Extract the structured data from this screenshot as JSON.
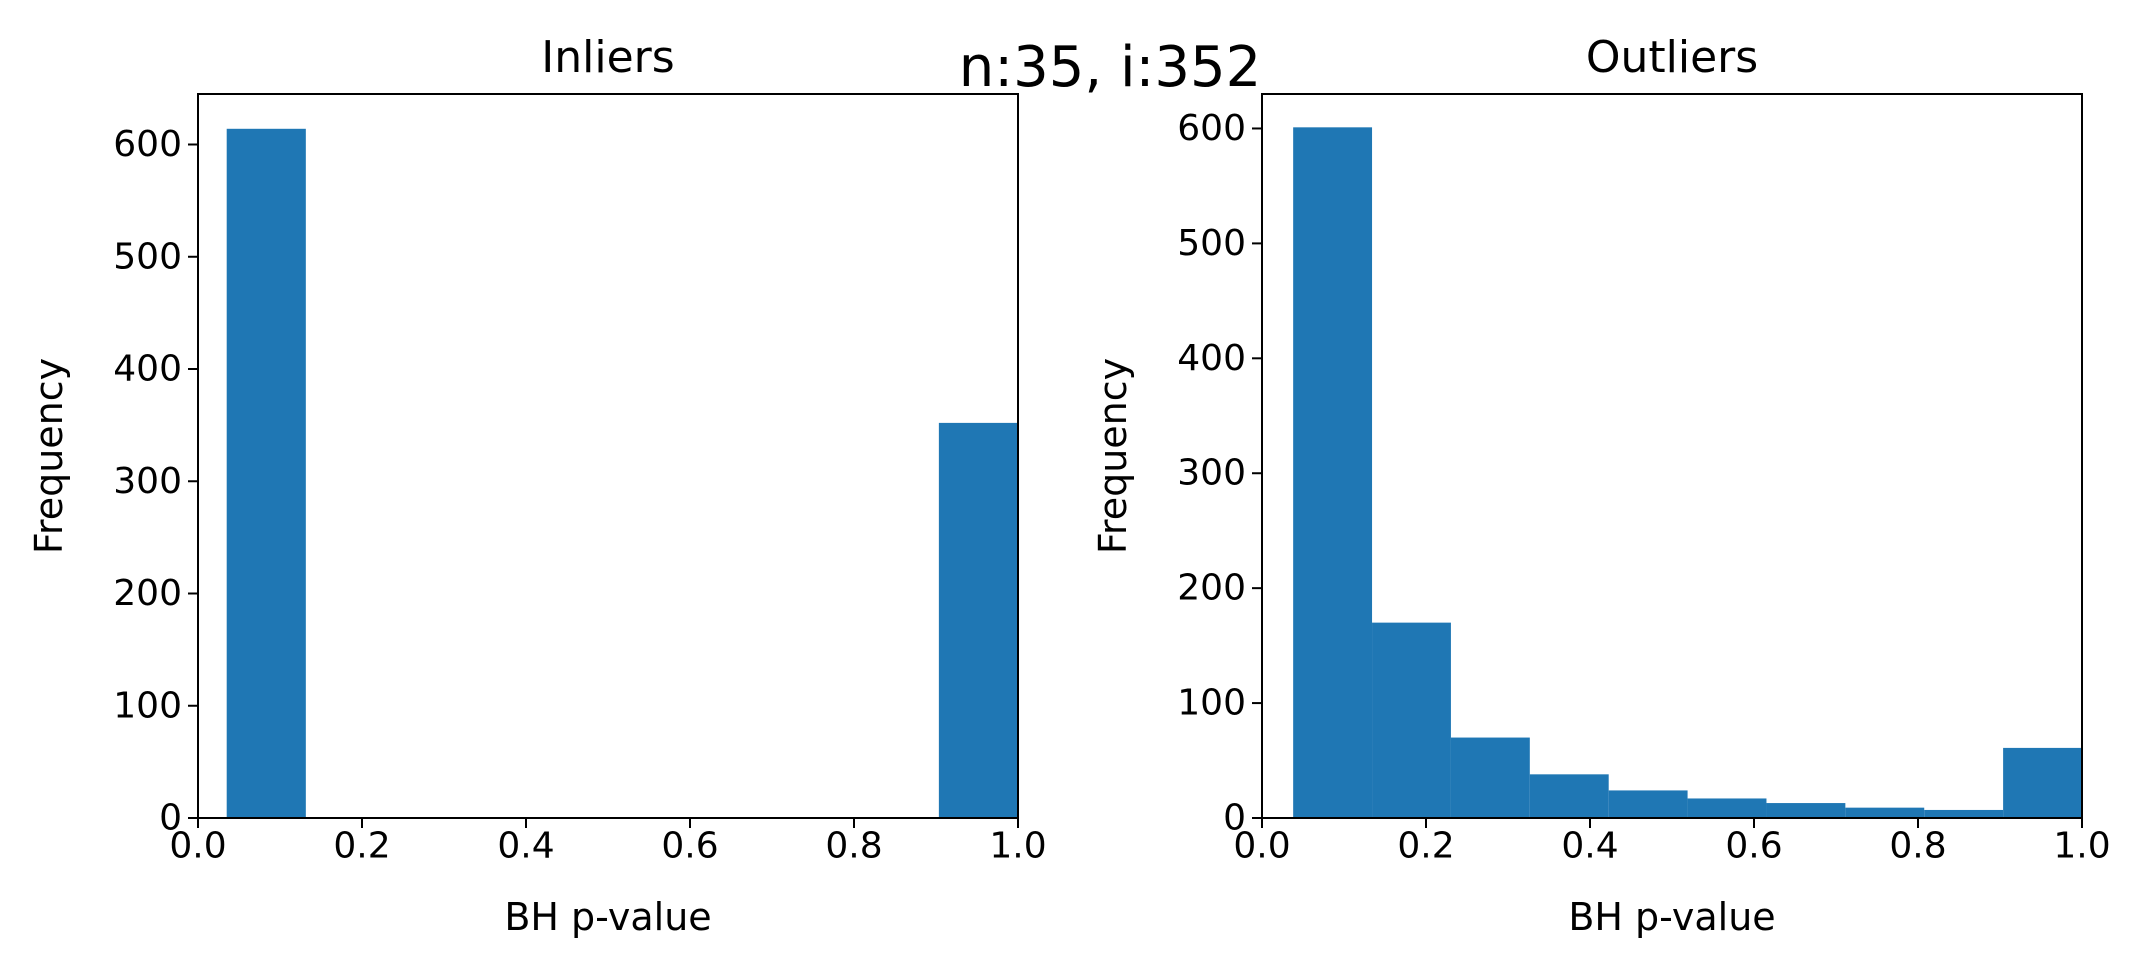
{
  "figure": {
    "suptitle": "n:35, i:352"
  },
  "chart_data": [
    {
      "type": "bar",
      "title": "Inliers",
      "xlabel": "BH p-value",
      "ylabel": "Frequency",
      "xlim": [
        0.0,
        1.0
      ],
      "ylim": [
        0,
        645
      ],
      "xticks": [
        "0.0",
        "0.2",
        "0.4",
        "0.6",
        "0.8",
        "1.0"
      ],
      "yticks": [
        "0",
        "100",
        "200",
        "300",
        "400",
        "500",
        "600"
      ],
      "bins": [
        {
          "x0": 0.035,
          "x1": 0.1315,
          "count": 614
        },
        {
          "x0": 0.1315,
          "x1": 0.228,
          "count": 0
        },
        {
          "x0": 0.228,
          "x1": 0.3245,
          "count": 0
        },
        {
          "x0": 0.3245,
          "x1": 0.421,
          "count": 0
        },
        {
          "x0": 0.421,
          "x1": 0.5175,
          "count": 0
        },
        {
          "x0": 0.5175,
          "x1": 0.614,
          "count": 0
        },
        {
          "x0": 0.614,
          "x1": 0.7105,
          "count": 0
        },
        {
          "x0": 0.7105,
          "x1": 0.807,
          "count": 0
        },
        {
          "x0": 0.807,
          "x1": 0.9035,
          "count": 0
        },
        {
          "x0": 0.9035,
          "x1": 1.0,
          "count": 352
        }
      ],
      "bar_color": "#1f77b4"
    },
    {
      "type": "bar",
      "title": "Outliers",
      "xlabel": "BH p-value",
      "ylabel": "Frequency",
      "xlim": [
        0.0,
        1.0
      ],
      "ylim": [
        0,
        630
      ],
      "xticks": [
        "0.0",
        "0.2",
        "0.4",
        "0.6",
        "0.8",
        "1.0"
      ],
      "yticks": [
        "0",
        "100",
        "200",
        "300",
        "400",
        "500",
        "600"
      ],
      "bins": [
        {
          "x0": 0.038,
          "x1": 0.1342,
          "count": 601
        },
        {
          "x0": 0.1342,
          "x1": 0.2304,
          "count": 170
        },
        {
          "x0": 0.2304,
          "x1": 0.3266,
          "count": 70
        },
        {
          "x0": 0.3266,
          "x1": 0.4228,
          "count": 38
        },
        {
          "x0": 0.4228,
          "x1": 0.519,
          "count": 24
        },
        {
          "x0": 0.519,
          "x1": 0.6152,
          "count": 17
        },
        {
          "x0": 0.6152,
          "x1": 0.7114,
          "count": 13
        },
        {
          "x0": 0.7114,
          "x1": 0.8076,
          "count": 9
        },
        {
          "x0": 0.8076,
          "x1": 0.9038,
          "count": 7
        },
        {
          "x0": 0.9038,
          "x1": 1.0,
          "count": 61
        }
      ],
      "bar_color": "#1f77b4"
    }
  ]
}
